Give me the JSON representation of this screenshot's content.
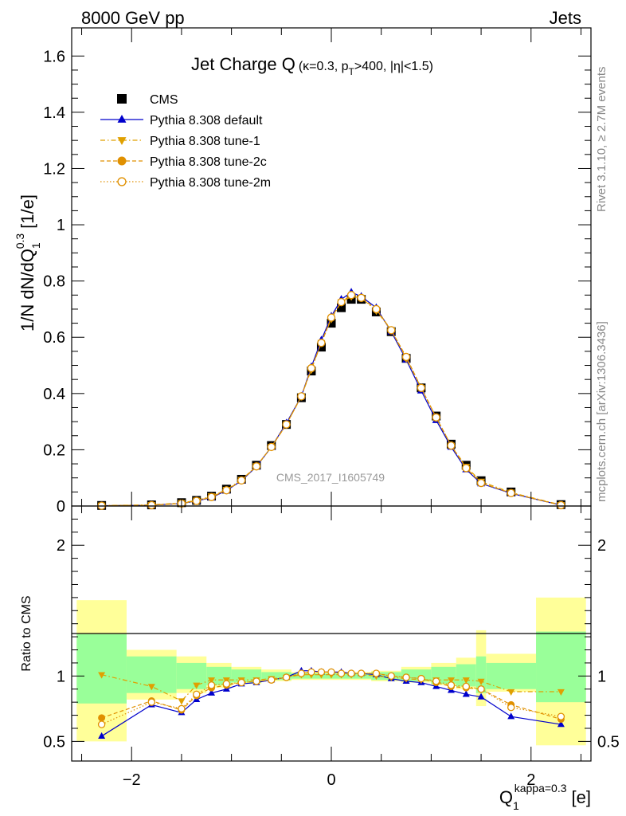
{
  "header": {
    "energy_label": "8000 GeV pp",
    "process_label": "Jets"
  },
  "side_labels": {
    "rivet": "Rivet 3.1.10, ≥ 2.7M events",
    "mcplots": "mcplots.cern.ch [arXiv:1306.3436]"
  },
  "chart_data": [
    {
      "type": "line",
      "title": "Jet Charge Q",
      "subtitle_parts": [
        "(κ=0.3, p",
        "T",
        ">400, |η|<1.5)"
      ],
      "watermark": "CMS_2017_I1605749",
      "ylabel_main": "1/N dN/dQ",
      "ylabel_sup": "0.3",
      "ylabel_sub": "1",
      "ylabel_unit": "[1/e]",
      "xlim": [
        -2.6,
        2.6
      ],
      "ylim": [
        0,
        1.7
      ],
      "yticks": [
        "0",
        "0.2",
        "0.4",
        "0.6",
        "0.8",
        "1",
        "1.2",
        "1.4",
        "1.6"
      ],
      "legend_position": "top-left",
      "x": [
        -2.3,
        -1.8,
        -1.5,
        -1.35,
        -1.2,
        -1.05,
        -0.9,
        -0.75,
        -0.6,
        -0.45,
        -0.3,
        -0.2,
        -0.1,
        0.0,
        0.1,
        0.2,
        0.3,
        0.45,
        0.6,
        0.75,
        0.9,
        1.05,
        1.2,
        1.35,
        1.5,
        1.8,
        2.3
      ],
      "series": [
        {
          "name": "CMS",
          "style": "square",
          "color": "#000000",
          "values": [
            0.002,
            0.004,
            0.012,
            0.02,
            0.035,
            0.06,
            0.095,
            0.145,
            0.215,
            0.29,
            0.385,
            0.48,
            0.565,
            0.65,
            0.705,
            0.735,
            0.735,
            0.69,
            0.62,
            0.525,
            0.42,
            0.32,
            0.22,
            0.145,
            0.09,
            0.05,
            0.005
          ]
        },
        {
          "name": "Pythia 8.308 default",
          "style": "triangle-up",
          "color": "#0000cc",
          "values": [
            0.001,
            0.003,
            0.009,
            0.018,
            0.03,
            0.055,
            0.09,
            0.14,
            0.21,
            0.295,
            0.39,
            0.495,
            0.59,
            0.675,
            0.735,
            0.76,
            0.745,
            0.705,
            0.62,
            0.52,
            0.41,
            0.305,
            0.21,
            0.13,
            0.08,
            0.045,
            0.003
          ]
        },
        {
          "name": "Pythia 8.308 tune-1",
          "style": "triangle-down",
          "color": "#e0a000",
          "values": [
            0.002,
            0.004,
            0.011,
            0.02,
            0.035,
            0.058,
            0.093,
            0.142,
            0.21,
            0.29,
            0.39,
            0.485,
            0.58,
            0.665,
            0.725,
            0.745,
            0.74,
            0.695,
            0.625,
            0.525,
            0.42,
            0.315,
            0.215,
            0.14,
            0.087,
            0.048,
            0.004
          ]
        },
        {
          "name": "Pythia 8.308 tune-2c",
          "style": "circle",
          "color": "#e09000",
          "values": [
            0.001,
            0.003,
            0.009,
            0.018,
            0.032,
            0.056,
            0.091,
            0.141,
            0.21,
            0.29,
            0.39,
            0.49,
            0.58,
            0.67,
            0.725,
            0.75,
            0.74,
            0.7,
            0.625,
            0.53,
            0.42,
            0.315,
            0.215,
            0.135,
            0.082,
            0.046,
            0.003
          ]
        },
        {
          "name": "Pythia 8.308 tune-2m",
          "style": "circle-open",
          "color": "#e09000",
          "values": [
            0.001,
            0.003,
            0.009,
            0.018,
            0.032,
            0.056,
            0.091,
            0.141,
            0.21,
            0.29,
            0.39,
            0.49,
            0.58,
            0.67,
            0.725,
            0.75,
            0.74,
            0.7,
            0.625,
            0.53,
            0.42,
            0.315,
            0.215,
            0.135,
            0.082,
            0.046,
            0.003
          ]
        }
      ]
    },
    {
      "type": "line",
      "ylabel": "Ratio to CMS",
      "xlabel_main": "Q",
      "xlabel_sub": "1",
      "xlabel_sup": "kappa=0.3",
      "xlabel_unit": "[e]",
      "xlim": [
        -2.6,
        2.6
      ],
      "ylim": [
        0.35,
        2.3
      ],
      "xticks": [
        "−2",
        "0",
        "2"
      ],
      "yticks": [
        "0.5",
        "1",
        "2"
      ],
      "bands": {
        "edges": [
          -2.55,
          -2.05,
          -1.55,
          -1.25,
          -1.0,
          -0.7,
          -0.4,
          0.4,
          0.7,
          1.0,
          1.25,
          1.45,
          1.55,
          2.05,
          2.55
        ],
        "green_lo": [
          0.79,
          0.87,
          0.9,
          0.93,
          0.95,
          0.97,
          0.98,
          0.97,
          0.96,
          0.94,
          0.92,
          0.87,
          0.9,
          0.8
        ],
        "green_hi": [
          1.32,
          1.15,
          1.1,
          1.07,
          1.05,
          1.03,
          1.02,
          1.03,
          1.05,
          1.07,
          1.09,
          1.15,
          1.1,
          1.34
        ],
        "yellow_lo": [
          0.5,
          0.82,
          0.87,
          0.91,
          0.94,
          0.96,
          0.97,
          0.96,
          0.95,
          0.93,
          0.9,
          0.77,
          0.88,
          0.47
        ],
        "yellow_hi": [
          1.58,
          1.2,
          1.15,
          1.1,
          1.07,
          1.05,
          1.03,
          1.04,
          1.07,
          1.1,
          1.14,
          1.35,
          1.17,
          1.6
        ]
      },
      "x": [
        -2.3,
        -1.8,
        -1.5,
        -1.35,
        -1.2,
        -1.05,
        -0.9,
        -0.75,
        -0.6,
        -0.45,
        -0.3,
        -0.2,
        -0.1,
        0.0,
        0.1,
        0.2,
        0.3,
        0.45,
        0.6,
        0.75,
        0.9,
        1.05,
        1.2,
        1.35,
        1.5,
        1.8,
        2.3
      ],
      "series": [
        {
          "name": "Pythia 8.308 default",
          "style": "triangle-up",
          "color": "#0000cc",
          "values": [
            0.54,
            0.78,
            0.72,
            0.82,
            0.87,
            0.9,
            0.94,
            0.95,
            0.97,
            0.99,
            1.04,
            1.04,
            1.03,
            1.03,
            1.03,
            1.02,
            1.02,
            1.01,
            0.98,
            0.96,
            0.95,
            0.92,
            0.89,
            0.86,
            0.84,
            0.69,
            0.63
          ]
        },
        {
          "name": "Pythia 8.308 tune-1",
          "style": "triangle-down",
          "color": "#e0a000",
          "values": [
            1.01,
            0.92,
            0.81,
            0.93,
            0.97,
            0.97,
            0.97,
            0.97,
            0.98,
            0.99,
            1.01,
            1.01,
            1.01,
            1.01,
            1.01,
            1.01,
            1.01,
            1.0,
            0.99,
            0.98,
            0.97,
            0.97,
            0.97,
            0.97,
            0.96,
            0.88,
            0.88
          ]
        },
        {
          "name": "Pythia 8.308 tune-2c",
          "style": "circle",
          "color": "#e09000",
          "values": [
            0.68,
            0.81,
            0.74,
            0.85,
            0.91,
            0.93,
            0.95,
            0.96,
            0.97,
            0.99,
            1.02,
            1.03,
            1.03,
            1.03,
            1.02,
            1.02,
            1.02,
            1.02,
            1.0,
            0.99,
            0.98,
            0.95,
            0.92,
            0.91,
            0.9,
            0.78,
            0.67
          ]
        },
        {
          "name": "Pythia 8.308 tune-2m",
          "style": "circle-open",
          "color": "#e09000",
          "values": [
            0.63,
            0.8,
            0.75,
            0.86,
            0.93,
            0.94,
            0.95,
            0.96,
            0.97,
            0.99,
            1.02,
            1.03,
            1.03,
            1.03,
            1.02,
            1.02,
            1.02,
            1.02,
            1.0,
            0.99,
            0.98,
            0.96,
            0.93,
            0.92,
            0.9,
            0.76,
            0.69
          ]
        }
      ]
    }
  ]
}
